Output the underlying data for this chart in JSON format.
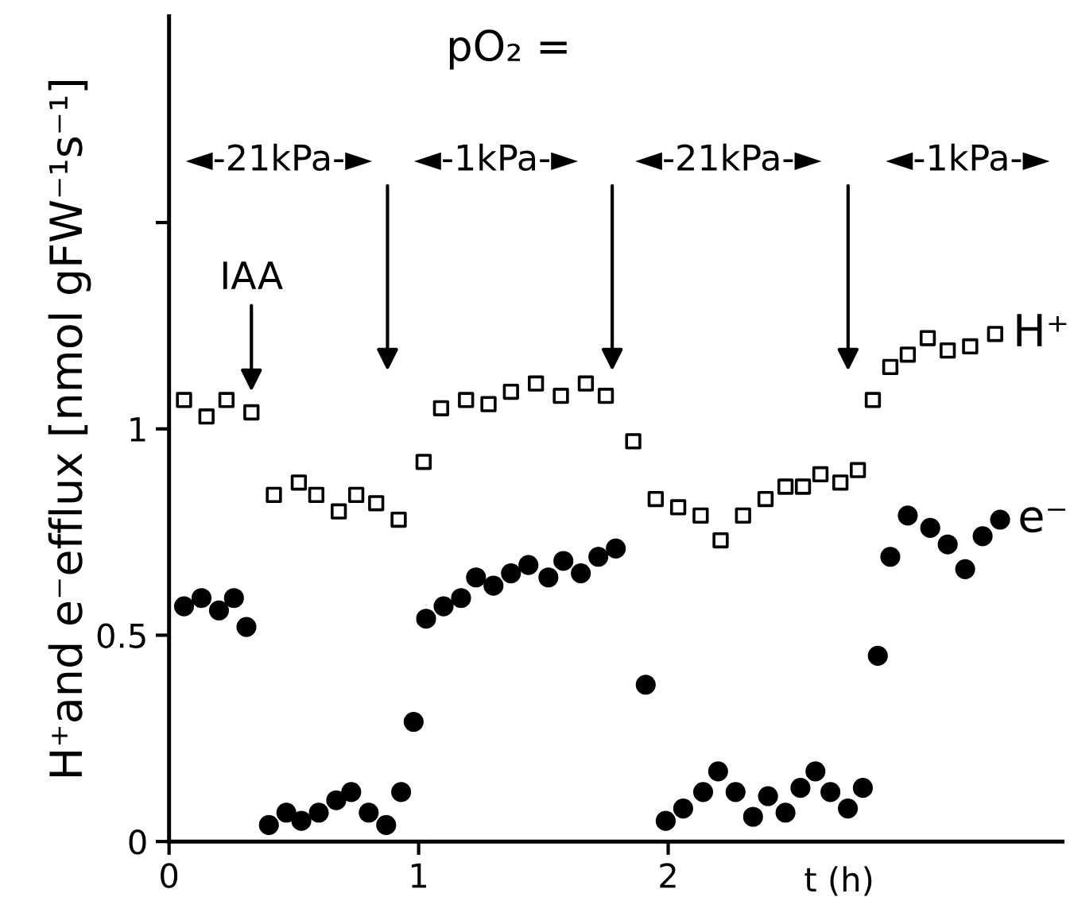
{
  "chart_data": {
    "type": "scatter",
    "xlabel": "t (h)",
    "ylabel": "H⁺and e⁻efflux [nmol gFW⁻¹s⁻¹]",
    "xlim": [
      0,
      3.58
    ],
    "xticks": [
      0,
      1,
      2
    ],
    "ylim": [
      0,
      2.0
    ],
    "yticks": [
      0,
      0.5,
      1,
      {
        "value": 1.5,
        "label": null
      }
    ],
    "grid": false,
    "legend": false,
    "annotations": [
      "pO₂ =",
      "◄-21kPa-►",
      "◄-1kPa-►",
      "◄-21kPa-►",
      "◄-1kPa-►",
      {
        "text": "IAA",
        "x": 0.33,
        "y": 1.07
      }
    ],
    "series": [
      {
        "name": "H⁺",
        "color": "#000000",
        "marker": "square",
        "x": [
          0.06,
          0.15,
          0.23,
          0.33,
          0.42,
          0.52,
          0.59,
          0.68,
          0.75,
          0.83,
          0.92,
          1.02,
          1.09,
          1.19,
          1.28,
          1.37,
          1.47,
          1.57,
          1.67,
          1.75,
          1.86,
          1.95,
          2.04,
          2.13,
          2.21,
          2.3,
          2.39,
          2.47,
          2.54,
          2.61,
          2.69,
          2.76,
          2.82,
          2.89,
          2.96,
          3.04,
          3.12,
          3.21,
          3.31
        ],
        "values": [
          1.07,
          1.03,
          1.07,
          1.04,
          0.84,
          0.87,
          0.84,
          0.8,
          0.84,
          0.82,
          0.78,
          0.92,
          1.05,
          1.07,
          1.06,
          1.09,
          1.11,
          1.08,
          1.11,
          1.08,
          0.97,
          0.83,
          0.81,
          0.79,
          0.73,
          0.79,
          0.83,
          0.86,
          0.86,
          0.89,
          0.87,
          0.9,
          1.07,
          1.15,
          1.18,
          1.22,
          1.19,
          1.2,
          1.23
        ]
      },
      {
        "name": "e⁻",
        "color": "#000000",
        "marker": "circle",
        "x": [
          0.06,
          0.13,
          0.2,
          0.26,
          0.31,
          0.4,
          0.47,
          0.53,
          0.6,
          0.67,
          0.73,
          0.8,
          0.87,
          0.93,
          0.98,
          1.03,
          1.1,
          1.17,
          1.23,
          1.3,
          1.37,
          1.44,
          1.52,
          1.58,
          1.65,
          1.72,
          1.79,
          1.91,
          1.99,
          2.06,
          2.14,
          2.2,
          2.27,
          2.34,
          2.4,
          2.47,
          2.53,
          2.59,
          2.65,
          2.72,
          2.78,
          2.84,
          2.89,
          2.96,
          3.05,
          3.12,
          3.19,
          3.26,
          3.33
        ],
        "values": [
          0.57,
          0.59,
          0.56,
          0.59,
          0.52,
          0.04,
          0.07,
          0.05,
          0.07,
          0.1,
          0.12,
          0.07,
          0.04,
          0.12,
          0.29,
          0.54,
          0.57,
          0.59,
          0.64,
          0.62,
          0.65,
          0.67,
          0.64,
          0.68,
          0.65,
          0.69,
          0.71,
          0.38,
          0.05,
          0.08,
          0.12,
          0.17,
          0.12,
          0.06,
          0.11,
          0.07,
          0.13,
          0.17,
          0.12,
          0.08,
          0.13,
          0.45,
          0.69,
          0.79,
          0.76,
          0.72,
          0.66,
          0.74,
          0.78
        ]
      }
    ]
  }
}
